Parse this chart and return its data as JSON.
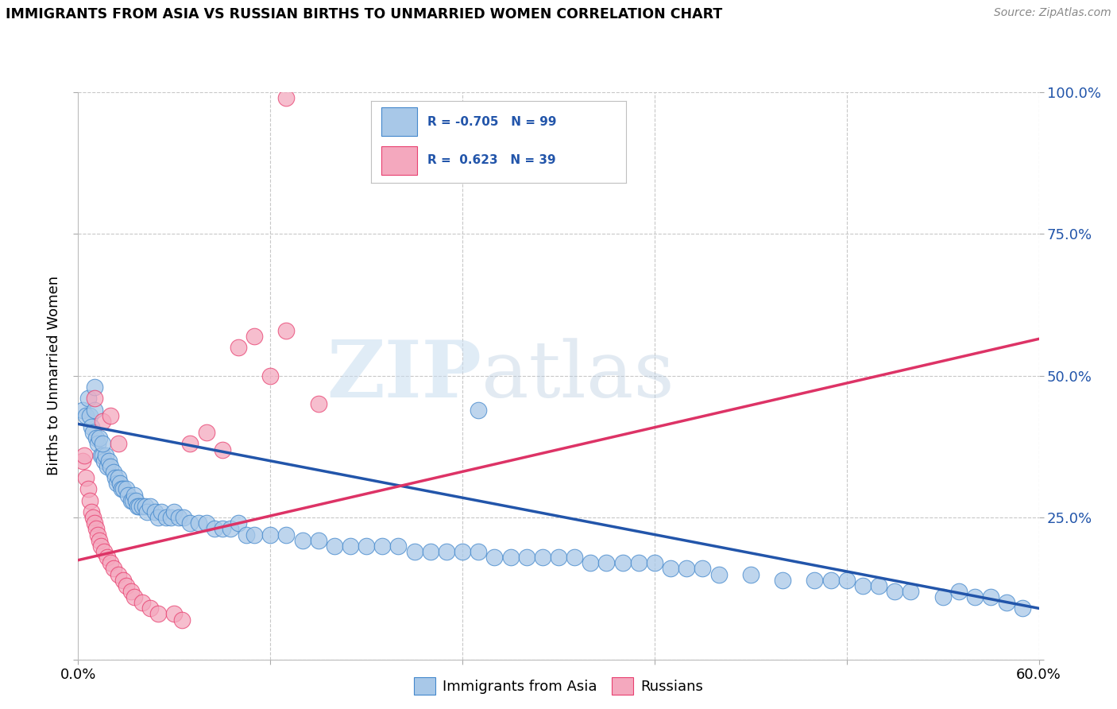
{
  "title": "IMMIGRANTS FROM ASIA VS RUSSIAN BIRTHS TO UNMARRIED WOMEN CORRELATION CHART",
  "source": "Source: ZipAtlas.com",
  "ylabel": "Births to Unmarried Women",
  "xlim": [
    0.0,
    0.6
  ],
  "ylim": [
    0.0,
    1.0
  ],
  "xtick_vals": [
    0.0,
    0.12,
    0.24,
    0.36,
    0.48,
    0.6
  ],
  "xtick_labels": [
    "0.0%",
    "",
    "",
    "",
    "",
    "60.0%"
  ],
  "ytick_vals": [
    0.0,
    0.25,
    0.5,
    0.75,
    1.0
  ],
  "ytick_labels_right": [
    "",
    "25.0%",
    "50.0%",
    "75.0%",
    "100.0%"
  ],
  "background_color": "#ffffff",
  "grid_color": "#c8c8c8",
  "blue_color": "#a8c8e8",
  "pink_color": "#f4a8be",
  "blue_edge_color": "#4488cc",
  "pink_edge_color": "#e84070",
  "blue_line_color": "#2255aa",
  "pink_line_color": "#dd3366",
  "legend_R1": "-0.705",
  "legend_N1": "99",
  "legend_R2": "0.623",
  "legend_N2": "39",
  "legend_label1": "Immigrants from Asia",
  "legend_label2": "Russians",
  "watermark_zip": "ZIP",
  "watermark_atlas": "atlas",
  "blue_trend_x": [
    0.0,
    0.6
  ],
  "blue_trend_y": [
    0.415,
    0.09
  ],
  "pink_trend_x": [
    0.0,
    0.6
  ],
  "pink_trend_y": [
    0.175,
    0.565
  ],
  "blue_scatter_x": [
    0.003,
    0.005,
    0.006,
    0.007,
    0.008,
    0.009,
    0.01,
    0.011,
    0.012,
    0.013,
    0.014,
    0.015,
    0.016,
    0.017,
    0.018,
    0.019,
    0.02,
    0.022,
    0.023,
    0.024,
    0.025,
    0.026,
    0.027,
    0.028,
    0.03,
    0.031,
    0.033,
    0.034,
    0.035,
    0.036,
    0.037,
    0.038,
    0.04,
    0.042,
    0.043,
    0.045,
    0.048,
    0.05,
    0.052,
    0.055,
    0.058,
    0.06,
    0.063,
    0.066,
    0.07,
    0.075,
    0.08,
    0.085,
    0.09,
    0.095,
    0.1,
    0.105,
    0.11,
    0.12,
    0.13,
    0.14,
    0.15,
    0.16,
    0.17,
    0.18,
    0.19,
    0.2,
    0.21,
    0.22,
    0.23,
    0.24,
    0.25,
    0.26,
    0.27,
    0.28,
    0.29,
    0.3,
    0.31,
    0.32,
    0.33,
    0.34,
    0.35,
    0.36,
    0.37,
    0.38,
    0.39,
    0.4,
    0.42,
    0.44,
    0.46,
    0.47,
    0.48,
    0.49,
    0.5,
    0.51,
    0.52,
    0.54,
    0.55,
    0.56,
    0.57,
    0.58,
    0.59,
    0.01,
    0.015,
    0.25
  ],
  "blue_scatter_y": [
    0.44,
    0.43,
    0.46,
    0.43,
    0.41,
    0.4,
    0.48,
    0.39,
    0.38,
    0.39,
    0.36,
    0.36,
    0.35,
    0.36,
    0.34,
    0.35,
    0.34,
    0.33,
    0.32,
    0.31,
    0.32,
    0.31,
    0.3,
    0.3,
    0.3,
    0.29,
    0.28,
    0.28,
    0.29,
    0.28,
    0.27,
    0.27,
    0.27,
    0.27,
    0.26,
    0.27,
    0.26,
    0.25,
    0.26,
    0.25,
    0.25,
    0.26,
    0.25,
    0.25,
    0.24,
    0.24,
    0.24,
    0.23,
    0.23,
    0.23,
    0.24,
    0.22,
    0.22,
    0.22,
    0.22,
    0.21,
    0.21,
    0.2,
    0.2,
    0.2,
    0.2,
    0.2,
    0.19,
    0.19,
    0.19,
    0.19,
    0.19,
    0.18,
    0.18,
    0.18,
    0.18,
    0.18,
    0.18,
    0.17,
    0.17,
    0.17,
    0.17,
    0.17,
    0.16,
    0.16,
    0.16,
    0.15,
    0.15,
    0.14,
    0.14,
    0.14,
    0.14,
    0.13,
    0.13,
    0.12,
    0.12,
    0.11,
    0.12,
    0.11,
    0.11,
    0.1,
    0.09,
    0.44,
    0.38,
    0.44
  ],
  "pink_scatter_x": [
    0.003,
    0.004,
    0.005,
    0.006,
    0.007,
    0.008,
    0.009,
    0.01,
    0.011,
    0.012,
    0.013,
    0.014,
    0.016,
    0.018,
    0.02,
    0.022,
    0.025,
    0.028,
    0.03,
    0.033,
    0.035,
    0.04,
    0.045,
    0.05,
    0.06,
    0.065,
    0.07,
    0.08,
    0.09,
    0.1,
    0.11,
    0.12,
    0.13,
    0.15,
    0.01,
    0.015,
    0.02,
    0.025,
    0.13
  ],
  "pink_scatter_y": [
    0.35,
    0.36,
    0.32,
    0.3,
    0.28,
    0.26,
    0.25,
    0.24,
    0.23,
    0.22,
    0.21,
    0.2,
    0.19,
    0.18,
    0.17,
    0.16,
    0.15,
    0.14,
    0.13,
    0.12,
    0.11,
    0.1,
    0.09,
    0.08,
    0.08,
    0.07,
    0.38,
    0.4,
    0.37,
    0.55,
    0.57,
    0.5,
    0.58,
    0.45,
    0.46,
    0.42,
    0.43,
    0.38,
    0.99
  ]
}
